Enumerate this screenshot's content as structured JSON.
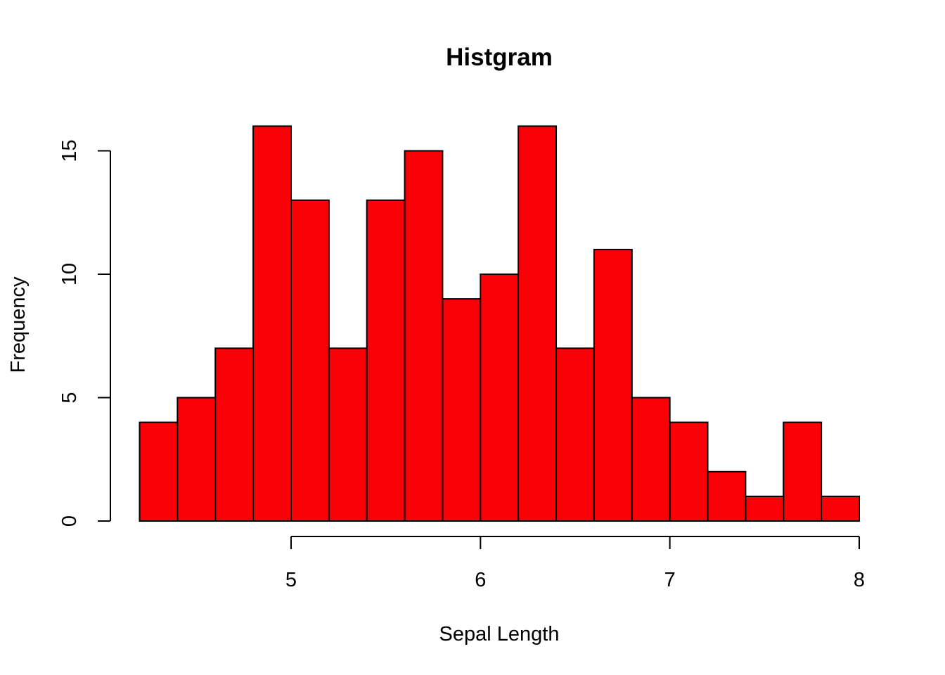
{
  "chart_data": {
    "type": "bar",
    "title": "Histgram",
    "xlabel": "Sepal Length",
    "ylabel": "Frequency",
    "bar_color": "#FA0007",
    "bin_width": 0.2,
    "bins": [
      {
        "start": 4.2,
        "end": 4.4,
        "count": 4
      },
      {
        "start": 4.4,
        "end": 4.6,
        "count": 5
      },
      {
        "start": 4.6,
        "end": 4.8,
        "count": 7
      },
      {
        "start": 4.8,
        "end": 5.0,
        "count": 16
      },
      {
        "start": 5.0,
        "end": 5.2,
        "count": 13
      },
      {
        "start": 5.2,
        "end": 5.4,
        "count": 7
      },
      {
        "start": 5.4,
        "end": 5.6,
        "count": 13
      },
      {
        "start": 5.6,
        "end": 5.8,
        "count": 15
      },
      {
        "start": 5.8,
        "end": 6.0,
        "count": 9
      },
      {
        "start": 6.0,
        "end": 6.2,
        "count": 10
      },
      {
        "start": 6.2,
        "end": 6.4,
        "count": 16
      },
      {
        "start": 6.4,
        "end": 6.6,
        "count": 7
      },
      {
        "start": 6.6,
        "end": 6.8,
        "count": 11
      },
      {
        "start": 6.8,
        "end": 7.0,
        "count": 5
      },
      {
        "start": 7.0,
        "end": 7.2,
        "count": 4
      },
      {
        "start": 7.2,
        "end": 7.4,
        "count": 2
      },
      {
        "start": 7.4,
        "end": 7.6,
        "count": 1
      },
      {
        "start": 7.6,
        "end": 7.8,
        "count": 4
      },
      {
        "start": 7.8,
        "end": 8.0,
        "count": 1
      }
    ],
    "x_ticks": [
      5,
      6,
      7,
      8
    ],
    "y_ticks": [
      0,
      5,
      10,
      15
    ],
    "xlim": [
      4.2,
      8.0
    ],
    "ylim": [
      0,
      16
    ],
    "grid": false,
    "legend": "none"
  }
}
